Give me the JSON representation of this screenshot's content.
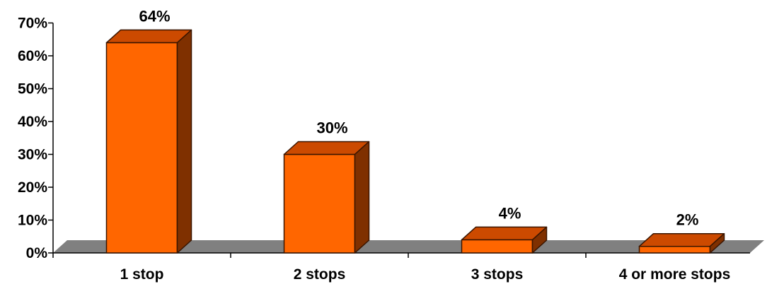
{
  "chart_data": {
    "type": "bar",
    "title": "",
    "xlabel": "",
    "ylabel": "",
    "categories": [
      "1 stop",
      "2 stops",
      "3 stops",
      "4 or more stops"
    ],
    "values": [
      64,
      30,
      4,
      2
    ],
    "data_labels": [
      "64%",
      "30%",
      "4%",
      "2%"
    ],
    "ylim": [
      0,
      70
    ],
    "y_ticks": [
      0,
      10,
      20,
      30,
      40,
      50,
      60,
      70
    ],
    "y_tick_labels": [
      "0%",
      "10%",
      "20%",
      "30%",
      "40%",
      "50%",
      "60%",
      "70%"
    ],
    "three_d": true,
    "grid": false,
    "legend": "none",
    "colors": {
      "bar_front": "#FF6600",
      "bar_top": "#CC4A00",
      "bar_side": "#7F3000",
      "bar_outline": "#3A1500",
      "floor": "#808080"
    }
  }
}
